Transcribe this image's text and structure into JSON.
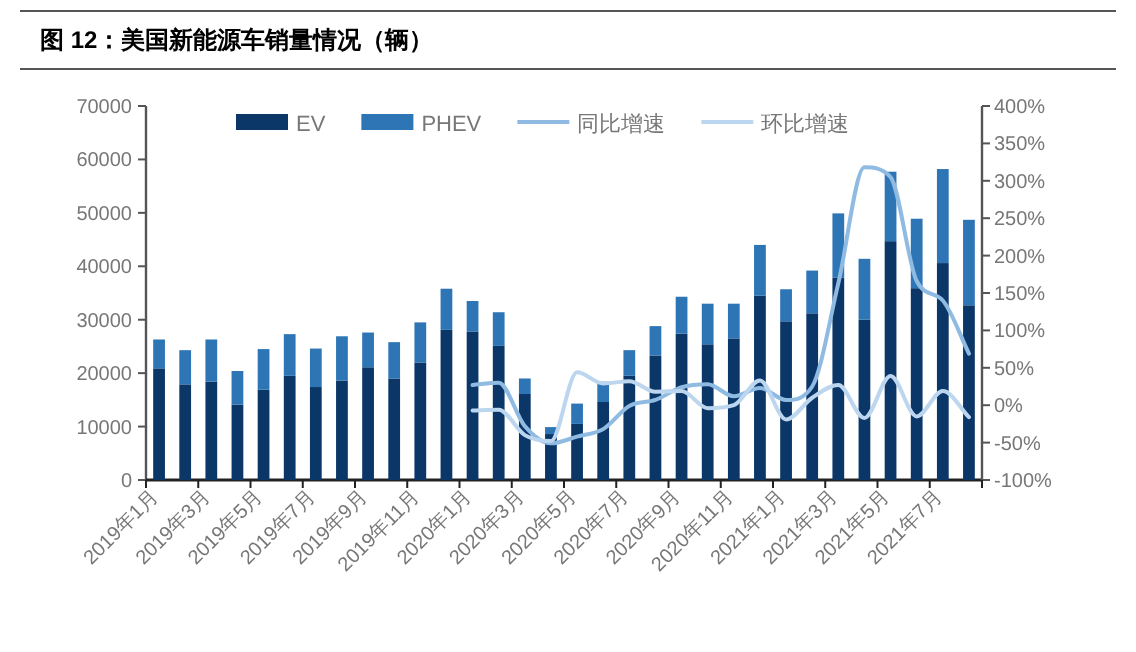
{
  "chart_data": {
    "type": "bar",
    "stacked": true,
    "title": "图 12：美国新能源车销量情况（辆）",
    "categories": [
      "2019年1月",
      null,
      "2019年3月",
      null,
      "2019年5月",
      null,
      "2019年7月",
      null,
      "2019年9月",
      null,
      "2019年11月",
      null,
      "2020年1月",
      null,
      "2020年3月",
      null,
      "2020年5月",
      null,
      "2020年7月",
      null,
      "2020年9月",
      null,
      "2020年11月",
      null,
      "2021年1月",
      null,
      "2021年3月",
      null,
      "2021年5月",
      null,
      "2021年7月",
      null
    ],
    "series": [
      {
        "name": "EV",
        "color": "#0b3668",
        "values": [
          20900,
          17900,
          18400,
          14100,
          16900,
          19500,
          17400,
          18600,
          21100,
          19000,
          22000,
          28100,
          27800,
          25100,
          16100,
          8600,
          10500,
          14600,
          19500,
          23300,
          27400,
          25400,
          26500,
          34500,
          29700,
          31200,
          37900,
          30000,
          44700,
          35900,
          40600,
          32700
        ]
      },
      {
        "name": "PHEV",
        "color": "#2e75b6",
        "values": [
          5400,
          6400,
          7900,
          6300,
          7600,
          7800,
          7200,
          8300,
          6500,
          6800,
          7500,
          7700,
          5700,
          6300,
          2900,
          1300,
          3800,
          3800,
          4800,
          5500,
          6900,
          7600,
          6500,
          9500,
          6000,
          8000,
          12000,
          11400,
          13000,
          13000,
          17600,
          16000
        ]
      },
      {
        "name": "同比增速",
        "type": "line",
        "axis": "y2",
        "color": "#8fbbe3",
        "values": [
          null,
          null,
          null,
          null,
          null,
          null,
          null,
          null,
          null,
          null,
          null,
          null,
          27,
          30,
          -28,
          -51,
          -42,
          -32,
          -1,
          7,
          24,
          28,
          12,
          23,
          7,
          25,
          163,
          318,
          305,
          166,
          140,
          69
        ]
      },
      {
        "name": "环比增速",
        "type": "line",
        "axis": "y2",
        "color": "#bcd6ef",
        "values": [
          null,
          null,
          null,
          null,
          null,
          null,
          null,
          null,
          null,
          null,
          null,
          null,
          -7,
          -6,
          -40,
          -48,
          44,
          29,
          32,
          18,
          19,
          -4,
          0,
          33,
          -19,
          10,
          27,
          -17,
          39,
          -15,
          19,
          -16
        ]
      }
    ],
    "ylim": [
      0,
      70000
    ],
    "yticks": [
      0,
      10000,
      20000,
      30000,
      40000,
      50000,
      60000,
      70000
    ],
    "y2lim": [
      -100,
      400
    ],
    "y2ticks": [
      {
        "value": -100,
        "label": "-100%"
      },
      {
        "value": -50,
        "label": "-50%"
      },
      {
        "value": 0,
        "label": "0%"
      },
      {
        "value": 50,
        "label": "50%"
      },
      {
        "value": 100,
        "label": "100%"
      },
      {
        "value": 150,
        "label": "150%"
      },
      {
        "value": 200,
        "label": "200%"
      },
      {
        "value": 250,
        "label": "250%"
      },
      {
        "value": 300,
        "label": "300%"
      },
      {
        "value": 350,
        "label": "350%"
      },
      {
        "value": 400,
        "label": "400%"
      }
    ],
    "legend": "top",
    "grid": false
  }
}
